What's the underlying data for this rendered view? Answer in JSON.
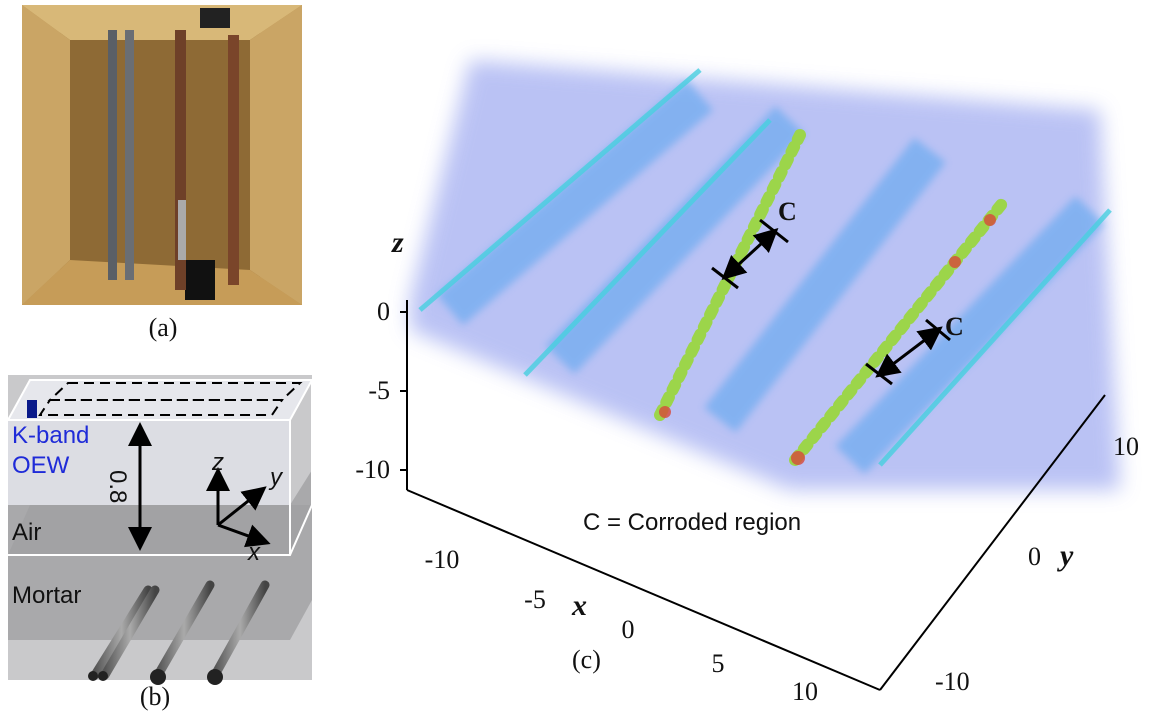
{
  "panel_a": {
    "label": "(a)"
  },
  "panel_b": {
    "label": "(b)",
    "antenna": [
      "K-band",
      "OEW"
    ],
    "distance": "0.8",
    "axes": {
      "z": "z",
      "y": "y",
      "x": "x"
    },
    "layers": [
      "Air",
      "Mortar"
    ]
  },
  "panel_c": {
    "label": "(c)",
    "annotations": [
      "C",
      "C"
    ],
    "legend": "C = Corroded region",
    "z_axis": {
      "label": "z",
      "ticks": [
        "0",
        "-5",
        "-10"
      ]
    },
    "x_axis": {
      "label": "x",
      "ticks": [
        "-10",
        "-5",
        "0",
        "5",
        "10"
      ]
    },
    "y_axis": {
      "label": "y",
      "ticks": [
        "-10",
        "0",
        "10"
      ]
    }
  }
}
